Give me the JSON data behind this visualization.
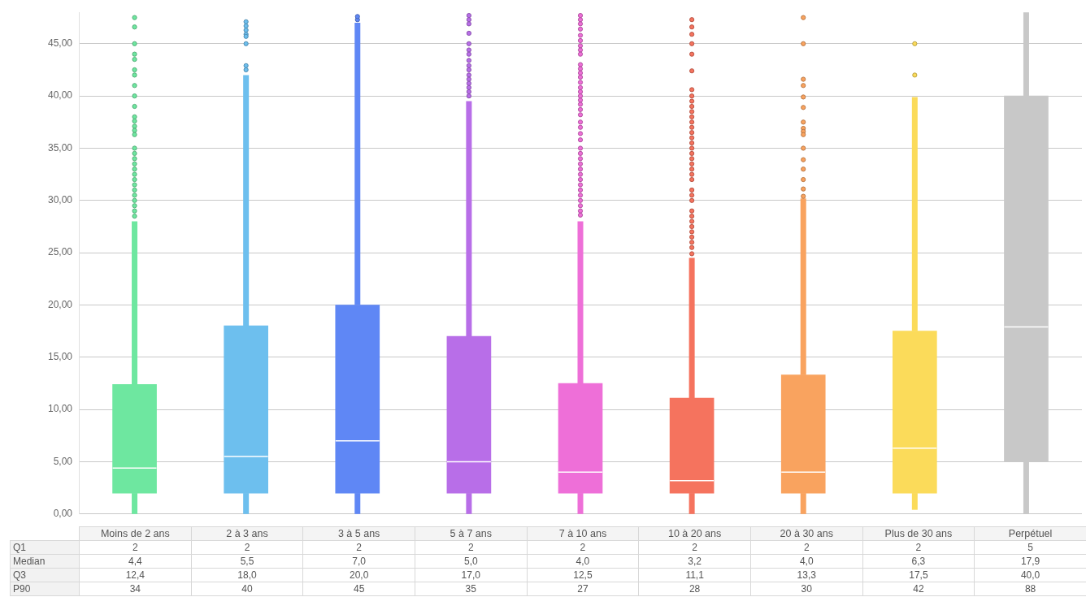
{
  "chart_data": {
    "type": "box",
    "categories": [
      "Moins de 2 ans",
      "2 à 3 ans",
      "3 à 5 ans",
      "5 à 7 ans",
      "7 à 10 ans",
      "10 à 20 ans",
      "20 à 30 ans",
      "Plus de 30 ans",
      "Perpétuel"
    ],
    "colors": [
      "#6ee7a0",
      "#6dbfee",
      "#5f87f5",
      "#b86ee8",
      "#ee6fd8",
      "#f5735e",
      "#f9a35f",
      "#fbdb5a",
      "#c8c8c8"
    ],
    "boxes": [
      {
        "low": 0,
        "q1": 2,
        "median": 4.4,
        "q3": 12.4,
        "high": 28,
        "outliers": [
          47.5,
          46.6,
          45,
          44,
          43.5,
          42.5,
          42,
          41,
          40,
          39,
          38,
          37.6,
          37.1,
          36.7,
          36.3,
          35,
          34.5,
          34,
          33.5,
          33,
          32.5,
          32,
          31.5,
          31,
          30.5,
          30,
          29.5,
          29,
          28.5
        ]
      },
      {
        "low": 0,
        "q1": 2,
        "median": 5.5,
        "q3": 18,
        "high": 42,
        "outliers": [
          47.1,
          46.7,
          46.3,
          45.9,
          45.7,
          45,
          42.9,
          42.5
        ]
      },
      {
        "low": 0,
        "q1": 2,
        "median": 7,
        "q3": 20,
        "high": 47,
        "outliers": [
          47.3,
          47.6
        ]
      },
      {
        "low": 0,
        "q1": 2,
        "median": 5,
        "q3": 17,
        "high": 39.5,
        "outliers": [
          47.7,
          47.3,
          46.9,
          46,
          45,
          44.4,
          44,
          43.4,
          42.9,
          42.5,
          42,
          41.6,
          41.2,
          40.8,
          40.4,
          40
        ]
      },
      {
        "low": 0,
        "q1": 2,
        "median": 4,
        "q3": 12.5,
        "high": 28,
        "outliers": [
          47.7,
          47.3,
          46.9,
          46.4,
          45.8,
          45.3,
          44.8,
          44.4,
          44,
          43,
          42.6,
          42.2,
          41.8,
          41.3,
          40.8,
          40.4,
          40,
          39.6,
          39.2,
          38.7,
          38.2,
          37.5,
          37,
          36.4,
          35.8,
          35,
          34.5,
          34,
          33.5,
          33,
          32.5,
          32,
          31.5,
          31,
          30.5,
          30,
          29.5,
          29,
          28.6
        ]
      },
      {
        "low": 0,
        "q1": 2,
        "median": 3.2,
        "q3": 11.1,
        "high": 24.5,
        "outliers": [
          47.3,
          46.6,
          45.9,
          45,
          44,
          42.4,
          40.6,
          40,
          39.5,
          39,
          38.5,
          38,
          37.5,
          37,
          36.5,
          36,
          35.5,
          35,
          34.5,
          34,
          33.5,
          33,
          32.5,
          32,
          31,
          30.5,
          30,
          29,
          28.5,
          28,
          27.5,
          27,
          26.5,
          26,
          25.5,
          24.9
        ]
      },
      {
        "low": 0,
        "q1": 2,
        "median": 4,
        "q3": 13.3,
        "high": 30.2,
        "outliers": [
          47.5,
          45,
          41.6,
          41,
          39.9,
          38.9,
          37.5,
          36.9,
          36.6,
          36.3,
          35,
          33.9,
          33,
          32,
          31.1,
          30.4
        ]
      },
      {
        "low": 0.4,
        "q1": 2,
        "median": 6.3,
        "q3": 17.5,
        "high": 39.9,
        "outliers": [
          45,
          42
        ]
      },
      {
        "low": 0,
        "q1": 5,
        "median": 17.9,
        "q3": 40,
        "high": 48
      }
    ],
    "ylim": [
      0,
      48
    ],
    "yticks": [
      {
        "value": 0,
        "label": "0,00"
      },
      {
        "value": 5,
        "label": "5,00"
      },
      {
        "value": 10,
        "label": "10,00"
      },
      {
        "value": 15,
        "label": "15,00"
      },
      {
        "value": 20,
        "label": "20,00"
      },
      {
        "value": 25,
        "label": "25,00"
      },
      {
        "value": 30,
        "label": "30,00"
      },
      {
        "value": 35,
        "label": "35,00"
      },
      {
        "value": 40,
        "label": "40,00"
      },
      {
        "value": 45,
        "label": "45,00"
      }
    ],
    "grid": "y",
    "annotations": [
      "Q1",
      "2",
      "2",
      "2",
      "2",
      "2",
      "2",
      "2",
      "2",
      "5",
      "Median",
      "4,4",
      "5,5",
      "7,0",
      "5,0",
      "4,0",
      "3,2",
      "4,0",
      "6,3",
      "17,9",
      "Q3",
      "12,4",
      "18,0",
      "20,0",
      "17,0",
      "12,5",
      "11,1",
      "13,3",
      "17,5",
      "40,0",
      "P90",
      "34",
      "40",
      "45",
      "35",
      "27",
      "28",
      "30",
      "42",
      "88"
    ]
  }
}
